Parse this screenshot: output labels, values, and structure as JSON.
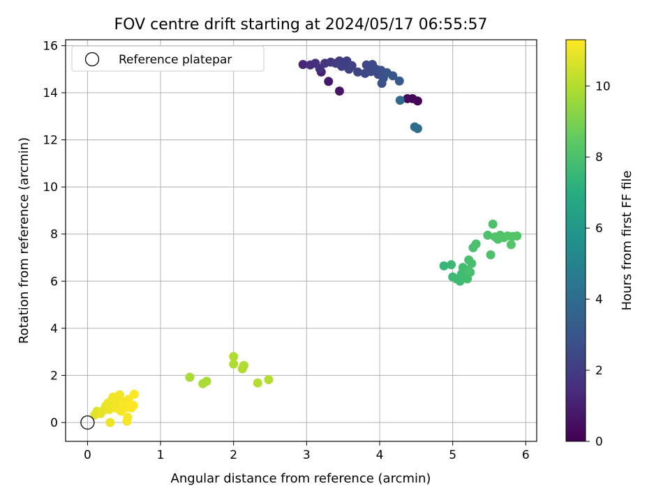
{
  "chart_data": {
    "type": "scatter",
    "title": "FOV centre drift starting at 2024/05/17 06:55:57",
    "xlabel": "Angular distance from reference (arcmin)",
    "ylabel": "Rotation from reference (arcmin)",
    "xlim": [
      -0.3,
      6.15
    ],
    "ylim": [
      -0.8,
      16.25
    ],
    "xticks": [
      0,
      1,
      2,
      3,
      4,
      5,
      6
    ],
    "yticks": [
      0,
      2,
      4,
      6,
      8,
      10,
      12,
      14,
      16
    ],
    "grid": true,
    "legend": {
      "placement": "top-left",
      "entries": [
        "Reference platepar"
      ]
    },
    "reference_point": {
      "x": 0,
      "y": 0
    },
    "colorbar": {
      "label": "Hours from first FF file",
      "colormap": "viridis",
      "range": [
        0,
        11.3
      ],
      "ticks": [
        0,
        2,
        4,
        6,
        8,
        10
      ]
    },
    "points": [
      {
        "x": 4.52,
        "y": 13.65,
        "h": 0.1
      },
      {
        "x": 4.45,
        "y": 13.75,
        "h": 0.2
      },
      {
        "x": 4.38,
        "y": 13.75,
        "h": 0.3
      },
      {
        "x": 3.45,
        "y": 14.07,
        "h": 0.6
      },
      {
        "x": 3.3,
        "y": 14.48,
        "h": 0.8
      },
      {
        "x": 3.2,
        "y": 14.88,
        "h": 1.0
      },
      {
        "x": 2.95,
        "y": 15.2,
        "h": 1.2
      },
      {
        "x": 3.05,
        "y": 15.18,
        "h": 1.4
      },
      {
        "x": 3.12,
        "y": 15.25,
        "h": 1.5
      },
      {
        "x": 3.18,
        "y": 15.02,
        "h": 1.6
      },
      {
        "x": 3.25,
        "y": 15.25,
        "h": 1.7
      },
      {
        "x": 3.33,
        "y": 15.3,
        "h": 1.8
      },
      {
        "x": 3.4,
        "y": 15.25,
        "h": 1.9
      },
      {
        "x": 3.45,
        "y": 15.35,
        "h": 2.0
      },
      {
        "x": 3.5,
        "y": 15.25,
        "h": 2.0
      },
      {
        "x": 3.55,
        "y": 15.35,
        "h": 2.1
      },
      {
        "x": 3.48,
        "y": 15.12,
        "h": 2.1
      },
      {
        "x": 3.58,
        "y": 15.0,
        "h": 2.2
      },
      {
        "x": 3.62,
        "y": 15.15,
        "h": 2.2
      },
      {
        "x": 3.7,
        "y": 14.88,
        "h": 2.3
      },
      {
        "x": 3.8,
        "y": 14.82,
        "h": 2.4
      },
      {
        "x": 3.82,
        "y": 15.18,
        "h": 2.4
      },
      {
        "x": 3.88,
        "y": 14.9,
        "h": 2.5
      },
      {
        "x": 3.9,
        "y": 15.2,
        "h": 2.5
      },
      {
        "x": 3.95,
        "y": 15.0,
        "h": 2.6
      },
      {
        "x": 3.98,
        "y": 14.78,
        "h": 2.6
      },
      {
        "x": 4.02,
        "y": 14.95,
        "h": 2.7
      },
      {
        "x": 4.03,
        "y": 14.4,
        "h": 2.7
      },
      {
        "x": 4.05,
        "y": 14.62,
        "h": 2.8
      },
      {
        "x": 4.1,
        "y": 14.85,
        "h": 2.9
      },
      {
        "x": 4.18,
        "y": 14.72,
        "h": 3.0
      },
      {
        "x": 4.27,
        "y": 14.5,
        "h": 3.2
      },
      {
        "x": 4.28,
        "y": 13.68,
        "h": 3.8
      },
      {
        "x": 4.48,
        "y": 12.55,
        "h": 3.9
      },
      {
        "x": 4.52,
        "y": 12.48,
        "h": 4.0
      },
      {
        "x": 4.88,
        "y": 6.65,
        "h": 7.5
      },
      {
        "x": 4.98,
        "y": 6.7,
        "h": 7.6
      },
      {
        "x": 5.0,
        "y": 6.18,
        "h": 7.6
      },
      {
        "x": 5.05,
        "y": 6.1,
        "h": 7.7
      },
      {
        "x": 5.1,
        "y": 6.0,
        "h": 7.7
      },
      {
        "x": 5.12,
        "y": 6.3,
        "h": 7.7
      },
      {
        "x": 5.14,
        "y": 6.58,
        "h": 7.8
      },
      {
        "x": 5.17,
        "y": 6.5,
        "h": 7.8
      },
      {
        "x": 5.2,
        "y": 6.1,
        "h": 7.8
      },
      {
        "x": 5.22,
        "y": 6.9,
        "h": 7.9
      },
      {
        "x": 5.24,
        "y": 6.38,
        "h": 7.9
      },
      {
        "x": 5.26,
        "y": 6.75,
        "h": 7.9
      },
      {
        "x": 5.28,
        "y": 7.42,
        "h": 7.9
      },
      {
        "x": 5.32,
        "y": 7.58,
        "h": 8.0
      },
      {
        "x": 5.48,
        "y": 7.95,
        "h": 8.0
      },
      {
        "x": 5.52,
        "y": 7.12,
        "h": 8.0
      },
      {
        "x": 5.55,
        "y": 8.42,
        "h": 8.0
      },
      {
        "x": 5.58,
        "y": 7.88,
        "h": 8.1
      },
      {
        "x": 5.62,
        "y": 7.78,
        "h": 8.1
      },
      {
        "x": 5.65,
        "y": 7.95,
        "h": 8.1
      },
      {
        "x": 5.7,
        "y": 7.85,
        "h": 8.1
      },
      {
        "x": 5.75,
        "y": 7.92,
        "h": 8.2
      },
      {
        "x": 5.8,
        "y": 7.55,
        "h": 8.2
      },
      {
        "x": 5.82,
        "y": 7.9,
        "h": 8.2
      },
      {
        "x": 5.88,
        "y": 7.92,
        "h": 8.2
      },
      {
        "x": 1.4,
        "y": 1.92,
        "h": 9.8
      },
      {
        "x": 1.58,
        "y": 1.65,
        "h": 9.8
      },
      {
        "x": 1.63,
        "y": 1.75,
        "h": 9.8
      },
      {
        "x": 2.0,
        "y": 2.8,
        "h": 9.9
      },
      {
        "x": 2.0,
        "y": 2.48,
        "h": 9.9
      },
      {
        "x": 2.12,
        "y": 2.28,
        "h": 9.9
      },
      {
        "x": 2.14,
        "y": 2.42,
        "h": 9.9
      },
      {
        "x": 2.33,
        "y": 1.68,
        "h": 10.0
      },
      {
        "x": 2.48,
        "y": 1.82,
        "h": 10.0
      },
      {
        "x": 0.1,
        "y": 0.32,
        "h": 10.8
      },
      {
        "x": 0.13,
        "y": 0.48,
        "h": 10.8
      },
      {
        "x": 0.18,
        "y": 0.38,
        "h": 10.9
      },
      {
        "x": 0.22,
        "y": 0.52,
        "h": 10.9
      },
      {
        "x": 0.25,
        "y": 0.7,
        "h": 10.9
      },
      {
        "x": 0.28,
        "y": 0.82,
        "h": 11.0
      },
      {
        "x": 0.3,
        "y": 0.55,
        "h": 11.0
      },
      {
        "x": 0.31,
        "y": 0.0,
        "h": 11.0
      },
      {
        "x": 0.33,
        "y": 0.95,
        "h": 11.0
      },
      {
        "x": 0.35,
        "y": 1.08,
        "h": 11.1
      },
      {
        "x": 0.38,
        "y": 0.75,
        "h": 11.1
      },
      {
        "x": 0.4,
        "y": 0.6,
        "h": 11.1
      },
      {
        "x": 0.42,
        "y": 0.9,
        "h": 11.1
      },
      {
        "x": 0.44,
        "y": 1.18,
        "h": 11.1
      },
      {
        "x": 0.46,
        "y": 0.48,
        "h": 11.2
      },
      {
        "x": 0.48,
        "y": 0.72,
        "h": 11.2
      },
      {
        "x": 0.5,
        "y": 0.88,
        "h": 11.2
      },
      {
        "x": 0.52,
        "y": 0.62,
        "h": 11.2
      },
      {
        "x": 0.54,
        "y": 0.05,
        "h": 11.2
      },
      {
        "x": 0.55,
        "y": 0.22,
        "h": 11.2
      },
      {
        "x": 0.56,
        "y": 0.98,
        "h": 11.2
      },
      {
        "x": 0.58,
        "y": 0.78,
        "h": 11.3
      },
      {
        "x": 0.6,
        "y": 0.62,
        "h": 11.3
      },
      {
        "x": 0.63,
        "y": 0.72,
        "h": 11.3
      },
      {
        "x": 0.64,
        "y": 1.2,
        "h": 11.3
      }
    ]
  }
}
